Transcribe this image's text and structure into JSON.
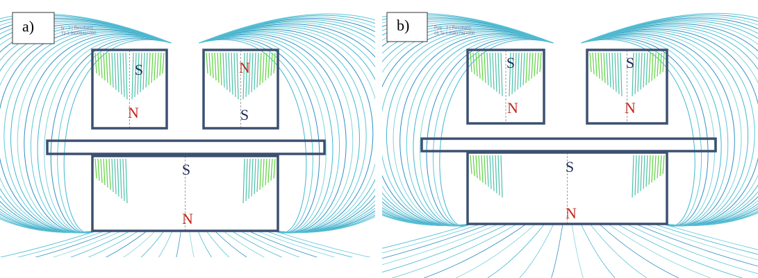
{
  "panels": [
    {
      "label": "a)",
      "caption_lines": [
        "ty - 2 ( Resultant)",
        "Tp 1.990084e+000"
      ],
      "magnets": [
        {
          "top": "S",
          "bottom": "N"
        },
        {
          "top": "N",
          "bottom": "S"
        },
        {
          "top": "S",
          "bottom": "N"
        }
      ]
    },
    {
      "label": "b)",
      "caption_lines": [
        "Poly - 2 ( Resultant)",
        "05 To 1.858379e+000"
      ],
      "magnets": [
        {
          "top": "S",
          "bottom": "N"
        },
        {
          "top": "S",
          "bottom": "N"
        },
        {
          "top": "S",
          "bottom": "N"
        }
      ]
    }
  ]
}
